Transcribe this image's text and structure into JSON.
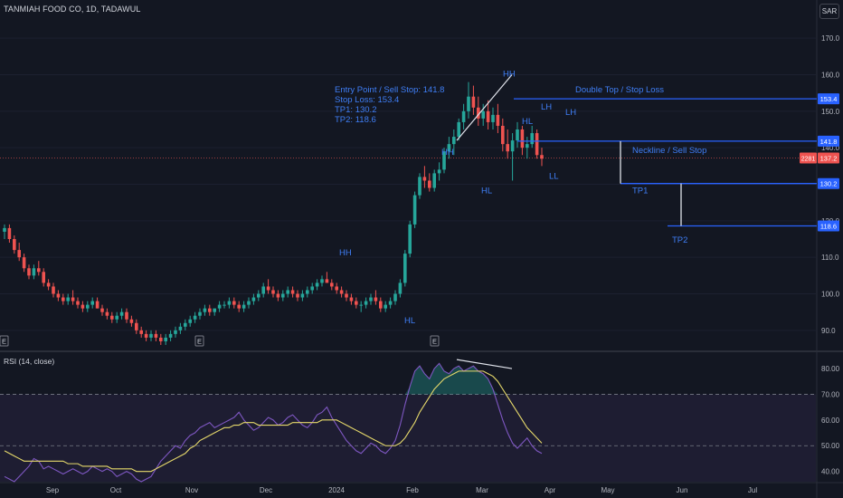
{
  "header": {
    "symbol_line": "TANMIAH FOOD CO, 1D, TADAWUL",
    "currency": "SAR"
  },
  "rsi_panel": {
    "label": "RSI (14, close)",
    "ticks": [
      40,
      50,
      60,
      70,
      80
    ],
    "upper_band": 70,
    "middle_band": 50
  },
  "colors": {
    "bg": "#131722",
    "up": "#26a69a",
    "down": "#ef5350",
    "annotation": "#2962ff",
    "annotation_text": "#3f7ef5",
    "rsi_line": "#7e57c2",
    "rsi_ma": "#e6d96b"
  },
  "chart_data": {
    "type": "candlestick",
    "title": "TANMIAH FOOD CO, 1D, TADAWUL",
    "currency": "SAR",
    "price_axis": {
      "range": [
        85,
        175
      ],
      "ticks": [
        90.0,
        100.0,
        110.0,
        120.0,
        130.0,
        140.0,
        150.0,
        160.0,
        170.0
      ]
    },
    "time_axis_labels": [
      "Sep",
      "Oct",
      "Nov",
      "Dec",
      "2024",
      "Feb",
      "Mar",
      "Apr",
      "May",
      "Jun",
      "Jul"
    ],
    "earnings_markers": [
      "E",
      "E",
      "E"
    ],
    "last_price": "137.2",
    "countdown": "2281",
    "price_lines": [
      {
        "label": "Double Top / Stop Loss",
        "value": 153.4,
        "badge": "153.4"
      },
      {
        "label": "Neckline / Sell Stop",
        "value": 141.8,
        "badge": "141.8"
      },
      {
        "label": "TP1",
        "value": 130.2,
        "badge": "130.2"
      },
      {
        "label": "TP2",
        "value": 118.6,
        "badge": "118.6"
      }
    ],
    "trade_info": [
      "Entry Point / Sell Stop: 141.8",
      "Stop Loss: 153.4",
      "TP1: 130.2",
      "TP2: 118.6"
    ],
    "swing_labels": [
      {
        "text": "HH",
        "price": 110.5
      },
      {
        "text": "HL",
        "price": 92.0
      },
      {
        "text": "HH",
        "price": 138.0
      },
      {
        "text": "HL",
        "price": 127.5
      },
      {
        "text": "HH",
        "price": 159.5
      },
      {
        "text": "HL",
        "price": 146.5
      },
      {
        "text": "LH",
        "price": 150.5
      },
      {
        "text": "LL",
        "price": 131.5
      },
      {
        "text": "LH",
        "price": 149.0
      },
      {
        "text": "TP1",
        "price": 127.5
      },
      {
        "text": "TP2",
        "price": 114.0
      }
    ],
    "candles": [
      [
        117,
        119,
        115,
        118
      ],
      [
        118,
        119,
        114,
        115
      ],
      [
        115,
        116,
        111,
        112
      ],
      [
        112,
        114,
        109,
        110
      ],
      [
        110,
        111,
        106,
        107
      ],
      [
        107,
        108,
        104,
        105
      ],
      [
        105,
        108,
        104,
        107
      ],
      [
        107,
        109,
        105,
        106
      ],
      [
        106,
        107,
        102,
        103
      ],
      [
        103,
        104,
        101,
        102
      ],
      [
        102,
        103,
        99,
        100
      ],
      [
        100,
        101,
        98,
        99
      ],
      [
        99,
        100,
        97,
        98
      ],
      [
        98,
        100,
        97,
        99
      ],
      [
        99,
        101,
        97,
        98
      ],
      [
        98,
        99,
        96,
        97
      ],
      [
        97,
        98,
        95,
        96
      ],
      [
        96,
        98,
        95,
        97
      ],
      [
        97,
        99,
        96,
        98
      ],
      [
        98,
        99,
        96,
        96
      ],
      [
        96,
        97,
        94,
        95
      ],
      [
        95,
        96,
        93,
        94
      ],
      [
        94,
        95,
        92,
        93
      ],
      [
        93,
        95,
        92,
        94
      ],
      [
        94,
        96,
        93,
        95
      ],
      [
        95,
        96,
        92,
        93
      ],
      [
        93,
        94,
        91,
        92
      ],
      [
        92,
        93,
        89,
        90
      ],
      [
        90,
        91,
        88,
        89
      ],
      [
        89,
        90,
        87,
        88
      ],
      [
        88,
        90,
        87,
        89
      ],
      [
        89,
        90,
        87,
        88
      ],
      [
        88,
        89,
        86,
        87
      ],
      [
        87,
        89,
        86,
        88
      ],
      [
        88,
        90,
        87,
        89
      ],
      [
        89,
        91,
        88,
        90
      ],
      [
        90,
        92,
        89,
        91
      ],
      [
        91,
        93,
        90,
        92
      ],
      [
        92,
        94,
        91,
        93
      ],
      [
        93,
        95,
        92,
        94
      ],
      [
        94,
        96,
        93,
        95
      ],
      [
        95,
        97,
        94,
        96
      ],
      [
        96,
        97,
        94,
        95
      ],
      [
        95,
        96,
        94,
        96
      ],
      [
        96,
        98,
        95,
        97
      ],
      [
        97,
        98,
        96,
        97
      ],
      [
        97,
        99,
        96,
        98
      ],
      [
        98,
        99,
        96,
        97
      ],
      [
        97,
        98,
        95,
        96
      ],
      [
        96,
        98,
        95,
        97
      ],
      [
        97,
        99,
        96,
        98
      ],
      [
        98,
        100,
        97,
        99
      ],
      [
        99,
        101,
        98,
        100
      ],
      [
        100,
        103,
        99,
        102
      ],
      [
        102,
        104,
        100,
        101
      ],
      [
        101,
        102,
        99,
        100
      ],
      [
        100,
        101,
        98,
        99
      ],
      [
        99,
        101,
        98,
        100
      ],
      [
        100,
        102,
        99,
        101
      ],
      [
        101,
        102,
        99,
        100
      ],
      [
        100,
        101,
        98,
        99
      ],
      [
        99,
        101,
        98,
        100
      ],
      [
        100,
        102,
        99,
        101
      ],
      [
        101,
        103,
        100,
        102
      ],
      [
        102,
        104,
        101,
        103
      ],
      [
        103,
        105,
        102,
        104
      ],
      [
        104,
        106,
        103,
        103
      ],
      [
        103,
        104,
        101,
        102
      ],
      [
        102,
        103,
        100,
        101
      ],
      [
        101,
        102,
        99,
        100
      ],
      [
        100,
        101,
        98,
        99
      ],
      [
        99,
        100,
        97,
        98
      ],
      [
        98,
        99,
        96,
        97
      ],
      [
        97,
        98,
        95,
        97
      ],
      [
        97,
        99,
        96,
        98
      ],
      [
        98,
        100,
        97,
        99
      ],
      [
        99,
        101,
        97,
        98
      ],
      [
        98,
        99,
        95,
        96
      ],
      [
        96,
        98,
        95,
        97
      ],
      [
        97,
        99,
        96,
        98
      ],
      [
        98,
        101,
        97,
        100
      ],
      [
        100,
        104,
        99,
        103
      ],
      [
        103,
        112,
        102,
        111
      ],
      [
        111,
        120,
        110,
        119
      ],
      [
        119,
        128,
        118,
        127
      ],
      [
        127,
        133,
        126,
        132
      ],
      [
        132,
        135,
        129,
        131
      ],
      [
        131,
        133,
        128,
        129
      ],
      [
        129,
        134,
        128,
        133
      ],
      [
        133,
        136,
        131,
        134
      ],
      [
        134,
        140,
        133,
        139
      ],
      [
        139,
        143,
        137,
        141
      ],
      [
        141,
        145,
        138,
        143
      ],
      [
        143,
        148,
        142,
        147
      ],
      [
        147,
        152,
        145,
        150
      ],
      [
        150,
        158,
        148,
        154
      ],
      [
        154,
        157,
        149,
        151
      ],
      [
        151,
        154,
        146,
        148
      ],
      [
        148,
        152,
        146,
        150
      ],
      [
        150,
        153,
        145,
        147
      ],
      [
        147,
        151,
        145,
        149
      ],
      [
        149,
        152,
        144,
        146
      ],
      [
        146,
        148,
        139,
        141
      ],
      [
        141,
        145,
        137,
        139
      ],
      [
        139,
        144,
        131,
        142
      ],
      [
        142,
        147,
        140,
        145
      ],
      [
        145,
        146,
        138,
        140
      ],
      [
        140,
        143,
        137,
        141
      ],
      [
        141,
        146,
        140,
        144
      ],
      [
        144,
        145,
        137,
        138
      ],
      [
        138,
        140,
        135,
        137
      ]
    ],
    "rsi": {
      "y_range": [
        36,
        86
      ],
      "values": [
        38,
        37,
        36,
        38,
        40,
        42,
        45,
        44,
        41,
        42,
        41,
        40,
        39,
        40,
        41,
        40,
        39,
        40,
        42,
        41,
        40,
        41,
        40,
        38,
        39,
        40,
        39,
        37,
        36,
        37,
        38,
        41,
        44,
        46,
        48,
        50,
        49,
        52,
        54,
        55,
        57,
        58,
        59,
        57,
        58,
        59,
        60,
        61,
        63,
        60,
        58,
        56,
        57,
        59,
        61,
        60,
        58,
        59,
        61,
        62,
        60,
        58,
        57,
        59,
        62,
        63,
        65,
        61,
        58,
        55,
        52,
        50,
        48,
        47,
        49,
        51,
        50,
        48,
        47,
        49,
        52,
        58,
        66,
        73,
        79,
        81,
        78,
        76,
        80,
        82,
        79,
        78,
        80,
        81,
        79,
        80,
        81,
        79,
        78,
        76,
        72,
        66,
        60,
        55,
        51,
        49,
        51,
        53,
        50,
        48,
        47
      ],
      "ma": [
        48,
        47,
        46,
        45,
        44,
        44,
        44,
        44,
        44,
        44,
        44,
        44,
        44,
        43,
        43,
        43,
        42,
        42,
        42,
        42,
        42,
        42,
        41,
        41,
        41,
        41,
        41,
        40,
        40,
        40,
        40,
        41,
        42,
        43,
        44,
        45,
        46,
        47,
        49,
        50,
        52,
        53,
        54,
        55,
        56,
        57,
        57,
        58,
        58,
        59,
        59,
        59,
        58,
        58,
        58,
        58,
        58,
        58,
        58,
        59,
        59,
        59,
        59,
        59,
        59,
        60,
        60,
        60,
        60,
        59,
        58,
        57,
        56,
        55,
        54,
        53,
        52,
        51,
        50,
        50,
        50,
        51,
        53,
        56,
        59,
        63,
        66,
        69,
        72,
        74,
        76,
        77,
        78,
        79,
        79,
        79,
        79,
        79,
        79,
        78,
        77,
        75,
        72,
        69,
        66,
        63,
        60,
        57,
        55,
        53,
        51
      ]
    }
  }
}
